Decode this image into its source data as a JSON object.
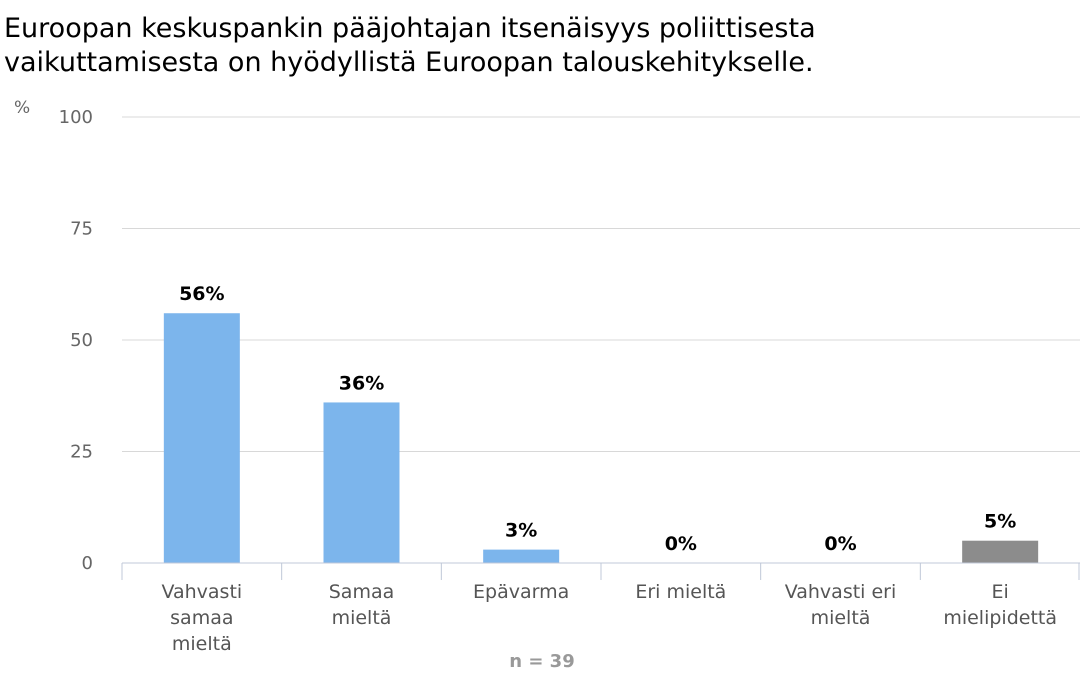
{
  "chart_data": {
    "type": "bar",
    "title_lines": [
      "Euroopan keskuspankin pääjohtajan itsenäisyys poliittisesta",
      "vaikuttamisesta on hyödyllistä Euroopan talouskehitykselle."
    ],
    "ylabel": "%",
    "ylim": [
      0,
      100
    ],
    "yticks": [
      0,
      25,
      50,
      75,
      100
    ],
    "grid": true,
    "legend": "none",
    "categories": [
      [
        "Vahvasti",
        "samaa",
        "mieltä"
      ],
      [
        "Samaa",
        "mieltä"
      ],
      [
        "Epävarma"
      ],
      [
        "Eri mieltä"
      ],
      [
        "Vahvasti eri",
        "mieltä"
      ],
      [
        "Ei",
        "mielipidettä"
      ]
    ],
    "values": [
      56,
      36,
      3,
      0,
      0,
      5
    ],
    "data_labels": [
      "56%",
      "36%",
      "3%",
      "0%",
      "0%",
      "5%"
    ],
    "bar_colors": [
      "#7cb5ec",
      "#7cb5ec",
      "#7cb5ec",
      "#7cb5ec",
      "#7cb5ec",
      "#8c8c8c"
    ],
    "note": "n = 39"
  },
  "colors": {
    "bar": "#7cb5ec",
    "bar_no_opinion": "#8c8c8c",
    "grid": "#d8d8d8",
    "axis": "#c0c8d8"
  }
}
